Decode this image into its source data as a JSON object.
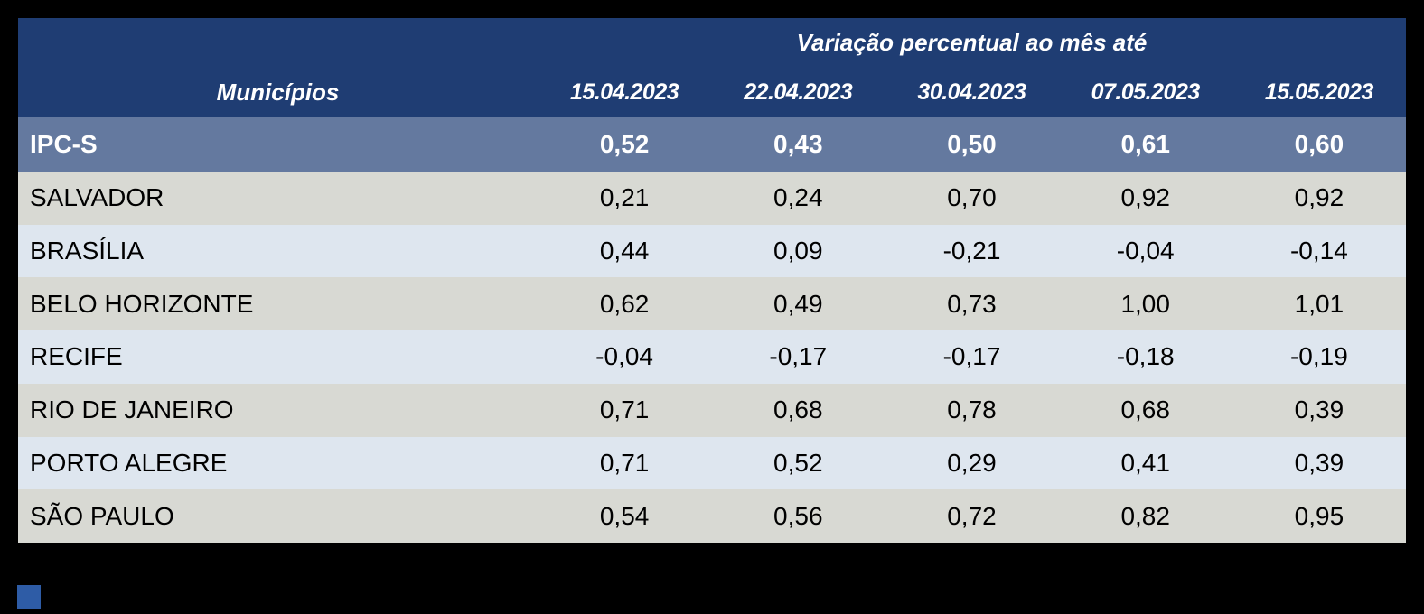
{
  "table": {
    "header": {
      "group_title": "Variação percentual ao mês até",
      "municipios_label": "Municípios",
      "date_columns": [
        "15.04.2023",
        "22.04.2023",
        "30.04.2023",
        "07.05.2023",
        "15.05.2023"
      ]
    },
    "summary_row": {
      "label": "IPC-S",
      "values": [
        "0,52",
        "0,43",
        "0,50",
        "0,61",
        "0,60"
      ]
    },
    "rows": [
      {
        "label": "SALVADOR",
        "values": [
          "0,21",
          "0,24",
          "0,70",
          "0,92",
          "0,92"
        ]
      },
      {
        "label": "BRASÍLIA",
        "values": [
          "0,44",
          "0,09",
          "-0,21",
          "-0,04",
          "-0,14"
        ]
      },
      {
        "label": "BELO HORIZONTE",
        "values": [
          "0,62",
          "0,49",
          "0,73",
          "1,00",
          "1,01"
        ]
      },
      {
        "label": "RECIFE",
        "values": [
          "-0,04",
          "-0,17",
          "-0,17",
          "-0,18",
          "-0,19"
        ]
      },
      {
        "label": "RIO DE JANEIRO",
        "values": [
          "0,71",
          "0,68",
          "0,78",
          "0,68",
          "0,39"
        ]
      },
      {
        "label": "PORTO ALEGRE",
        "values": [
          "0,71",
          "0,52",
          "0,29",
          "0,41",
          "0,39"
        ]
      },
      {
        "label": "SÃO PAULO",
        "values": [
          "0,54",
          "0,56",
          "0,72",
          "0,82",
          "0,95"
        ]
      }
    ],
    "colors": {
      "canvas_bg": "#000000",
      "header_bg": "#1f3d73",
      "header_text": "#ffffff",
      "summary_bg": "#64799f",
      "row_alt_gray": "#d8d9d3",
      "row_alt_blue": "#dee6ef",
      "row_text": "#000000",
      "accent_square": "#2e5ca6"
    }
  },
  "chart_data": {
    "type": "table",
    "title": "Variação percentual ao mês até",
    "row_header": "Municípios",
    "columns": [
      "15.04.2023",
      "22.04.2023",
      "30.04.2023",
      "07.05.2023",
      "15.05.2023"
    ],
    "rows": [
      {
        "name": "IPC-S",
        "values": [
          0.52,
          0.43,
          0.5,
          0.61,
          0.6
        ]
      },
      {
        "name": "SALVADOR",
        "values": [
          0.21,
          0.24,
          0.7,
          0.92,
          0.92
        ]
      },
      {
        "name": "BRASÍLIA",
        "values": [
          0.44,
          0.09,
          -0.21,
          -0.04,
          -0.14
        ]
      },
      {
        "name": "BELO HORIZONTE",
        "values": [
          0.62,
          0.49,
          0.73,
          1.0,
          1.01
        ]
      },
      {
        "name": "RECIFE",
        "values": [
          -0.04,
          -0.17,
          -0.17,
          -0.18,
          -0.19
        ]
      },
      {
        "name": "RIO DE JANEIRO",
        "values": [
          0.71,
          0.68,
          0.78,
          0.68,
          0.39
        ]
      },
      {
        "name": "PORTO ALEGRE",
        "values": [
          0.71,
          0.52,
          0.29,
          0.41,
          0.39
        ]
      },
      {
        "name": "SÃO PAULO",
        "values": [
          0.54,
          0.56,
          0.72,
          0.82,
          0.95
        ]
      }
    ]
  }
}
